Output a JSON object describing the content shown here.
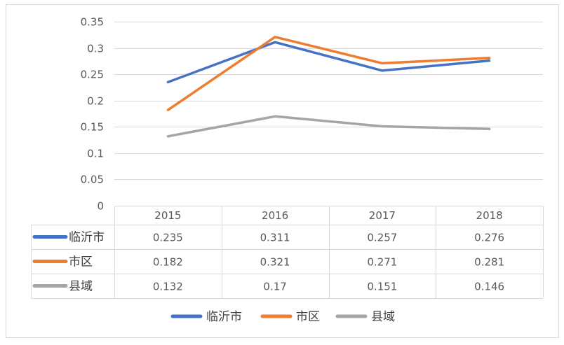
{
  "chart_data": {
    "type": "line",
    "title": "",
    "xlabel": "",
    "ylabel": "",
    "categories": [
      "2015",
      "2016",
      "2017",
      "2018"
    ],
    "ylim": [
      0,
      0.35
    ],
    "yticks": [
      "0",
      "0.05",
      "0.1",
      "0.15",
      "0.2",
      "0.25",
      "0.3",
      "0.35"
    ],
    "grid": true,
    "legend_position": "bottom",
    "data_table": true,
    "series": [
      {
        "name": "临沂市",
        "color": "#4472C4",
        "values": [
          0.235,
          0.311,
          0.257,
          0.276
        ],
        "labels": [
          "0.235",
          "0.311",
          "0.257",
          "0.276"
        ]
      },
      {
        "name": "市区",
        "color": "#ED7D31",
        "values": [
          0.182,
          0.321,
          0.271,
          0.281
        ],
        "labels": [
          "0.182",
          "0.321",
          "0.271",
          "0.281"
        ]
      },
      {
        "name": "县域",
        "color": "#A5A5A5",
        "values": [
          0.132,
          0.17,
          0.151,
          0.146
        ],
        "labels": [
          "0.132",
          "0.17",
          "0.151",
          "0.146"
        ]
      }
    ]
  }
}
